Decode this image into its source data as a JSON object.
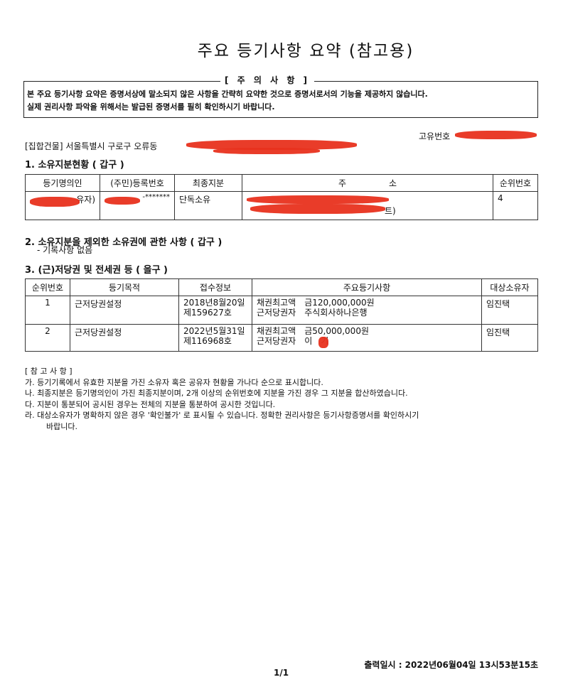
{
  "title": "주요 등기사항 요약 (참고용)",
  "notice": {
    "heading": "[ 주 의 사 항 ]",
    "line1": "본 주요 등기사항 요약은 증명서상에 말소되지 않은 사항을 간략히 요약한 것으로 증명서로서의 기능을 제공하지 않습니다.",
    "line2": "실제 권리사항 파악을 위해서는 발급된 증명서를 필히 확인하시기 바랍니다."
  },
  "unique_no_label": "고유번호",
  "address": "[집합건물] 서울특별시 구로구 오류동",
  "section1": {
    "title": "1. 소유지분현황 ( 갑구 )",
    "headers": [
      "등기명의인",
      "(주민)등록번호",
      "최종지분",
      "주　　　　　소",
      "순위번호"
    ],
    "rows": [
      {
        "name": "유자)",
        "id": "-*******",
        "share": "단독소유",
        "address": "트)",
        "rank": "4"
      }
    ]
  },
  "section2": {
    "title": "2. 소유지분을 제외한 소유권에 관한 사항 ( 갑구 )",
    "body": "- 기록사항 없음"
  },
  "section3": {
    "title": "3. (근)저당권 및 전세권 등 ( 을구 )",
    "headers": [
      "순위번호",
      "등기목적",
      "접수정보",
      "주요등기사항",
      "대상소유자"
    ],
    "rows": [
      {
        "rank": "1",
        "purpose": "근저당권설정",
        "date": "2018년8월20일",
        "receipt": "제159627호",
        "l1": "채권최고액　금120,000,000원",
        "l2": "근저당권자　주식회사하나은행",
        "owner": "임진택"
      },
      {
        "rank": "2",
        "purpose": "근저당권설정",
        "date": "2022년5월31일",
        "receipt": "제116968호",
        "l1": "채권최고액　금50,000,000원",
        "l2": "근저당권자　이　기",
        "owner": "임진택"
      }
    ]
  },
  "notes": {
    "heading": "[ 참 고 사 항 ]",
    "items": [
      "가. 등기기록에서 유효한 지분을 가진 소유자 혹은 공유자 현황을 가나다 순으로 표시합니다.",
      "나. 최종지분은 등기명의인이 가진 최종지분이며, 2개 이상의 순위번호에 지분을 가진 경우 그 지분을 합산하였습니다.",
      "다. 지분이 통분되어 공시된 경우는 전체의 지분을 통분하여 공시한 것입니다.",
      "라. 대상소유자가 명확하지 않은 경우 '확인불가' 로 표시될 수 있습니다. 정확한 권리사항은 등기사항증명서를 확인하시기",
      "바랍니다."
    ]
  },
  "footer": {
    "printed": "출력일시 : 2022년06월04일 13시53분15초",
    "page": "1/1"
  },
  "colors": {
    "redaction": "#e8321e"
  }
}
